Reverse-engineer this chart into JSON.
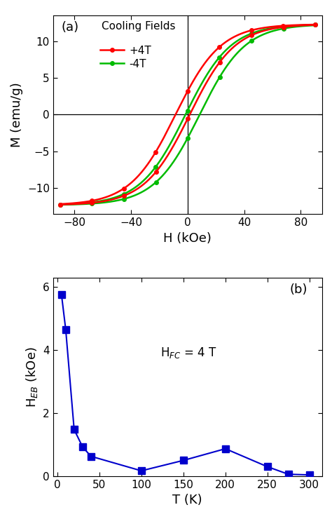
{
  "panel_a": {
    "label": "(a)",
    "cooling_fields_label": "Cooling Fields",
    "legend_plus4T": "+4T",
    "legend_minus4T": "-4T",
    "xlabel": "H (kOe)",
    "ylabel": "M (emu/g)",
    "xlim": [
      -95,
      95
    ],
    "ylim": [
      -13.5,
      13.5
    ],
    "xticks": [
      -80,
      -40,
      0,
      40,
      80
    ],
    "yticks": [
      -10,
      -5,
      0,
      5,
      10
    ],
    "color_plus4T": "#ff0000",
    "color_minus4T": "#00bb00",
    "linewidth": 1.8,
    "markersize": 4,
    "vline_x": 0,
    "hline_y": 0,
    "Ms": 12.3,
    "Hk": 32,
    "Hc_plus4T": 5.0,
    "Hc_minus4T": -5.0,
    "He_plus4T": -3.5,
    "He_minus4T": 3.5
  },
  "panel_b": {
    "label": "(b)",
    "annotation_text": "H$_{FC}$ = 4 T",
    "xlabel": "T (K)",
    "ylabel": "H$_{EB}$ (kOe)",
    "xlim": [
      -5,
      315
    ],
    "ylim": [
      0,
      6.3
    ],
    "xticks": [
      0,
      50,
      100,
      150,
      200,
      250,
      300
    ],
    "yticks": [
      0,
      2,
      4,
      6
    ],
    "color": "#0000cc",
    "linewidth": 1.5,
    "markersize": 7,
    "T_data": [
      5,
      10,
      20,
      30,
      40,
      100,
      150,
      200,
      250,
      275,
      300
    ],
    "HEB_data": [
      5.75,
      4.65,
      1.48,
      0.93,
      0.63,
      0.17,
      0.5,
      0.87,
      0.3,
      0.06,
      0.04
    ]
  },
  "background_color": "#ffffff",
  "figure_width": 4.74,
  "figure_height": 7.3,
  "dpi": 100
}
